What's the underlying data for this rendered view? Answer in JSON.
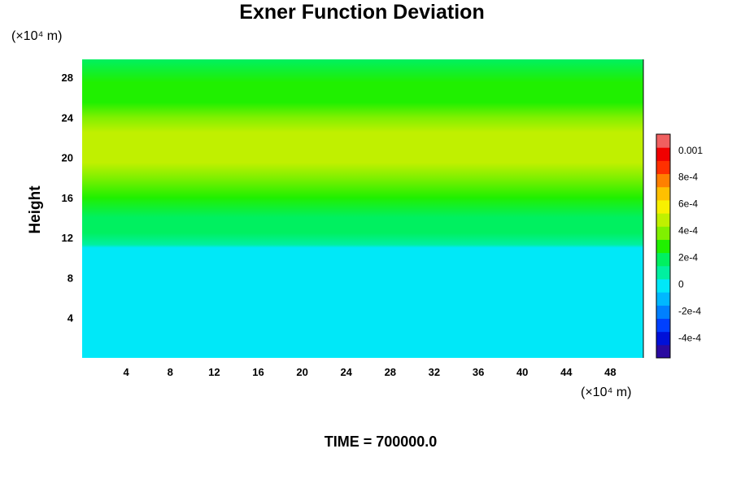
{
  "chart_data": {
    "type": "heatmap",
    "title": "Exner Function Deviation",
    "ylabel": "Height",
    "x_unit": "(×10⁴ m)",
    "y_unit": "(×10⁴ m)",
    "x_ticks": [
      4,
      8,
      12,
      16,
      20,
      24,
      28,
      32,
      36,
      40,
      44,
      48
    ],
    "y_ticks": [
      4,
      8,
      12,
      16,
      20,
      24,
      28
    ],
    "xlim": [
      0,
      51
    ],
    "ylim": [
      0,
      29.8
    ],
    "colorbar": {
      "min": -0.00055,
      "max": 0.00112,
      "tick_values": [
        0.001,
        0.0008,
        0.0006,
        0.0004,
        0.0002,
        0,
        -0.0002,
        -0.0004
      ],
      "tick_labels": [
        "0.001",
        "8e-4",
        "6e-4",
        "4e-4",
        "2e-4",
        "0",
        "-2e-4",
        "-4e-4"
      ],
      "colors": [
        "#2a0aa0",
        "#0010d8",
        "#0040ff",
        "#0080ff",
        "#00b8ff",
        "#00e8f8",
        "#00f0a0",
        "#00f060",
        "#20f000",
        "#80f000",
        "#c0f000",
        "#f8f000",
        "#ffc000",
        "#ff8000",
        "#ff3000",
        "#f00000",
        "#f06060"
      ]
    },
    "profile": [
      {
        "y": 0,
        "v": 3e-05
      },
      {
        "y": 11.0,
        "v": 3e-05
      },
      {
        "y": 11.3,
        "v": 0.0001
      },
      {
        "y": 12.5,
        "v": 0.00016
      },
      {
        "y": 14.0,
        "v": 0.00022
      },
      {
        "y": 16.0,
        "v": 0.0003
      },
      {
        "y": 18.0,
        "v": 0.00038
      },
      {
        "y": 19.5,
        "v": 0.00044
      },
      {
        "y": 21.0,
        "v": 0.00048
      },
      {
        "y": 22.5,
        "v": 0.00044
      },
      {
        "y": 24.0,
        "v": 0.00034
      },
      {
        "y": 25.5,
        "v": 0.0003
      },
      {
        "y": 27.5,
        "v": 0.00024
      },
      {
        "y": 29.8,
        "v": 0.00021
      }
    ],
    "annotation": "TIME = 700000.0"
  }
}
